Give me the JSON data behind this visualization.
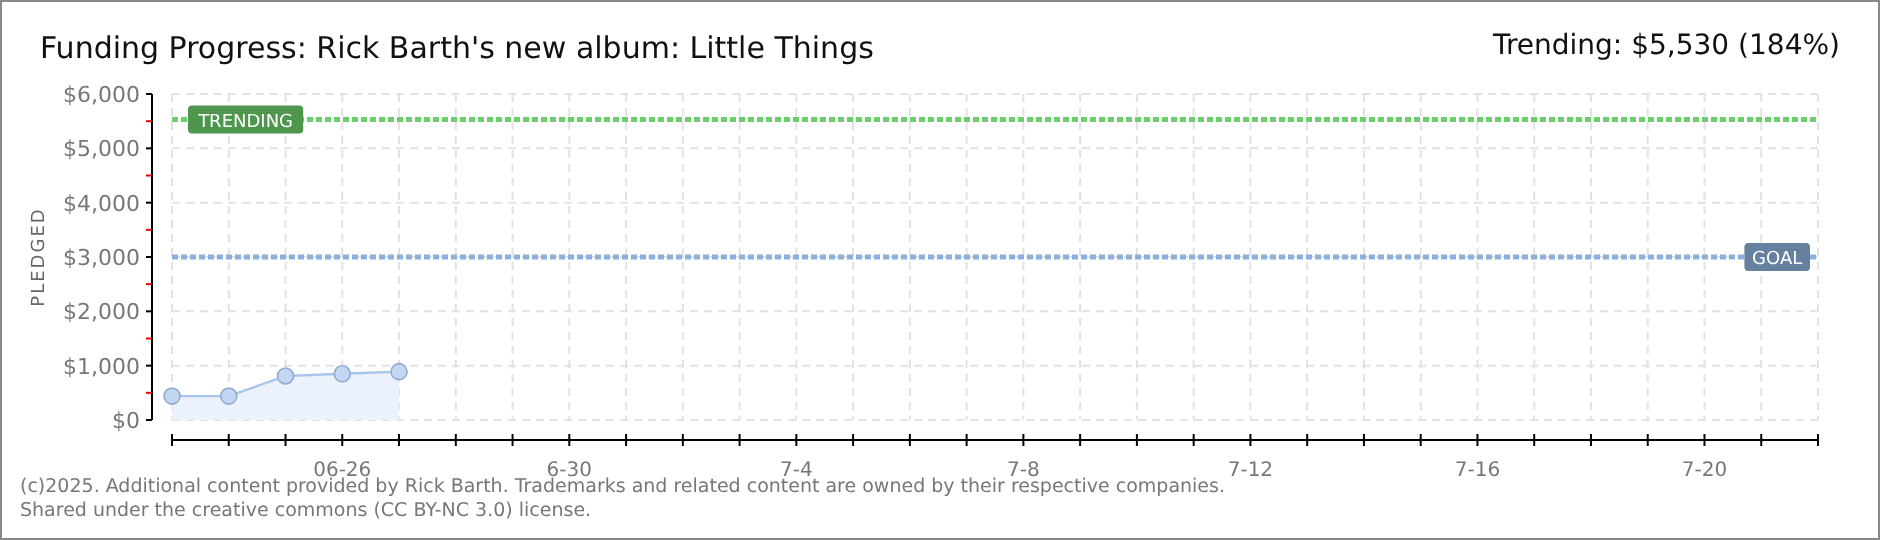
{
  "chart_data": {
    "type": "area",
    "title": "Funding Progress: Rick Barth's new album: Little Things",
    "subtitle": "Trending: $5,530 (184%)",
    "ylabel": "PLEDGED",
    "x": [
      "--06-23",
      "--06-24",
      "--06-25",
      "--06-26",
      "--06-27"
    ],
    "series": [
      {
        "color": "#a8c6ec",
        "values": [
          440,
          440,
          810,
          850,
          890
        ]
      }
    ],
    "xlim": [
      "--06-23",
      "--07-22"
    ],
    "xticks": [
      {
        "value": "--06-23",
        "label": null
      },
      {
        "value": "--06-24",
        "label": null
      },
      {
        "value": "--06-25",
        "label": null
      },
      {
        "value": "--06-26",
        "label": "06-26"
      },
      {
        "value": "--06-27",
        "label": null
      },
      {
        "value": "--06-28",
        "label": null
      },
      {
        "value": "--06-29",
        "label": null
      },
      {
        "value": "--06-30",
        "label": "6-30"
      },
      {
        "value": "--07-01",
        "label": null
      },
      {
        "value": "--07-02",
        "label": null
      },
      {
        "value": "--07-03",
        "label": null
      },
      {
        "value": "--07-04",
        "label": "7-4"
      },
      {
        "value": "--07-05",
        "label": null
      },
      {
        "value": "--07-06",
        "label": null
      },
      {
        "value": "--07-07",
        "label": null
      },
      {
        "value": "--07-08",
        "label": "7-8"
      },
      {
        "value": "--07-09",
        "label": null
      },
      {
        "value": "--07-10",
        "label": null
      },
      {
        "value": "--07-11",
        "label": null
      },
      {
        "value": "--07-12",
        "label": "7-12"
      },
      {
        "value": "--07-13",
        "label": null
      },
      {
        "value": "--07-14",
        "label": null
      },
      {
        "value": "--07-15",
        "label": null
      },
      {
        "value": "--07-16",
        "label": "7-16"
      },
      {
        "value": "--07-17",
        "label": null
      },
      {
        "value": "--07-18",
        "label": null
      },
      {
        "value": "--07-19",
        "label": null
      },
      {
        "value": "--07-20",
        "label": "7-20"
      },
      {
        "value": "--07-21",
        "label": null
      },
      {
        "value": "--07-22",
        "label": null
      }
    ],
    "ylim": [
      0,
      6000
    ],
    "yticks": [
      {
        "value": 0,
        "label": "$0"
      },
      {
        "value": 500,
        "label": null
      },
      {
        "value": 1000,
        "label": "$1,000"
      },
      {
        "value": 1500,
        "label": null
      },
      {
        "value": 2000,
        "label": "$2,000"
      },
      {
        "value": 2500,
        "label": null
      },
      {
        "value": 3000,
        "label": "$3,000"
      },
      {
        "value": 3500,
        "label": null
      },
      {
        "value": 4000,
        "label": "$4,000"
      },
      {
        "value": 4500,
        "label": null
      },
      {
        "value": 5000,
        "label": "$5,000"
      },
      {
        "value": 5500,
        "label": null
      },
      {
        "value": 6000,
        "label": "$6,000"
      }
    ],
    "ref_lines": [
      {
        "axis": "y",
        "value": 5530,
        "label": "TRENDING",
        "color": "#6ccf6c",
        "line_style": "dotted"
      },
      {
        "axis": "y",
        "value": 3000,
        "label": "GOAL",
        "color": "#8cb0dc",
        "line_style": "dotted"
      }
    ],
    "grid": true,
    "marker": "circle",
    "annotations": [
      "(c)2025. Additional content provided by Rick Barth. Trademarks and related content are owned by their respective companies.",
      "Shared under the creative commons (CC BY-NC 3.0) license."
    ]
  }
}
